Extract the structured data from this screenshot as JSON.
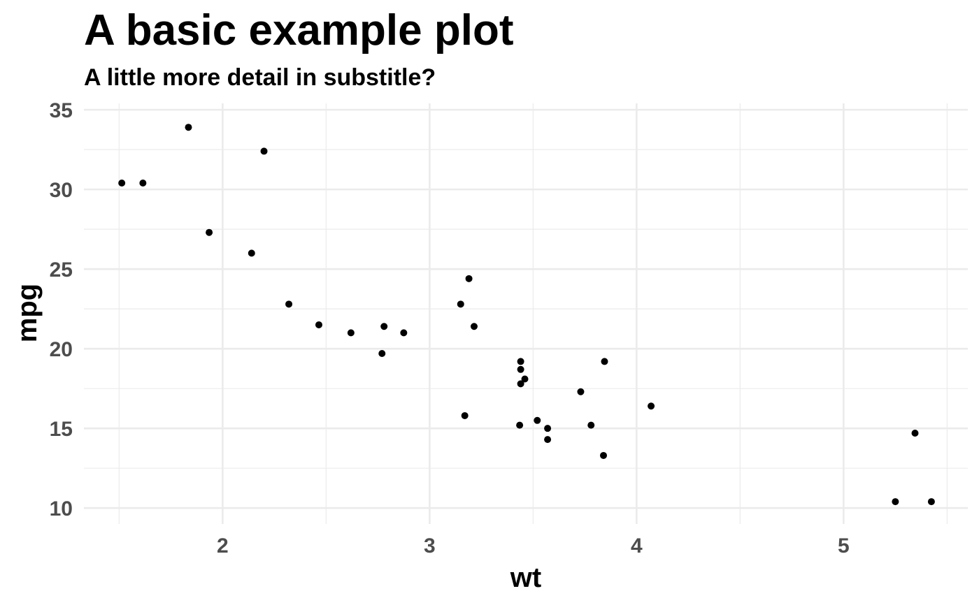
{
  "chart_data": {
    "type": "scatter",
    "title": "A basic example plot",
    "subtitle": "A little more detail in substitle?",
    "xlabel": "wt",
    "ylabel": "mpg",
    "xlim": [
      1.33,
      5.6
    ],
    "ylim": [
      9.0,
      35.4
    ],
    "x_ticks": [
      2,
      3,
      4,
      5
    ],
    "x_minor_ticks": [
      1.5,
      2.5,
      3.5,
      4.5,
      5.5
    ],
    "y_ticks": [
      10,
      15,
      20,
      25,
      30,
      35
    ],
    "y_minor_ticks": [
      12.5,
      17.5,
      22.5,
      27.5,
      32.5
    ],
    "grid": true,
    "legend": "none",
    "point_color": "#000000",
    "grid_color": "#ebebeb",
    "points": [
      {
        "x": 1.513,
        "y": 30.4
      },
      {
        "x": 1.615,
        "y": 30.4
      },
      {
        "x": 1.835,
        "y": 33.9
      },
      {
        "x": 1.935,
        "y": 27.3
      },
      {
        "x": 2.14,
        "y": 26.0
      },
      {
        "x": 2.2,
        "y": 32.4
      },
      {
        "x": 2.32,
        "y": 22.8
      },
      {
        "x": 2.465,
        "y": 21.5
      },
      {
        "x": 2.62,
        "y": 21.0
      },
      {
        "x": 2.77,
        "y": 19.7
      },
      {
        "x": 2.78,
        "y": 21.4
      },
      {
        "x": 2.875,
        "y": 21.0
      },
      {
        "x": 3.15,
        "y": 22.8
      },
      {
        "x": 3.17,
        "y": 15.8
      },
      {
        "x": 3.19,
        "y": 24.4
      },
      {
        "x": 3.215,
        "y": 21.4
      },
      {
        "x": 3.435,
        "y": 15.2
      },
      {
        "x": 3.44,
        "y": 18.7
      },
      {
        "x": 3.44,
        "y": 19.2
      },
      {
        "x": 3.44,
        "y": 17.8
      },
      {
        "x": 3.46,
        "y": 18.1
      },
      {
        "x": 3.52,
        "y": 15.5
      },
      {
        "x": 3.57,
        "y": 15.0
      },
      {
        "x": 3.57,
        "y": 14.3
      },
      {
        "x": 3.73,
        "y": 17.3
      },
      {
        "x": 3.78,
        "y": 15.2
      },
      {
        "x": 3.84,
        "y": 13.3
      },
      {
        "x": 3.845,
        "y": 19.2
      },
      {
        "x": 4.07,
        "y": 16.4
      },
      {
        "x": 5.25,
        "y": 10.4
      },
      {
        "x": 5.345,
        "y": 14.7
      },
      {
        "x": 5.424,
        "y": 10.4
      }
    ]
  }
}
